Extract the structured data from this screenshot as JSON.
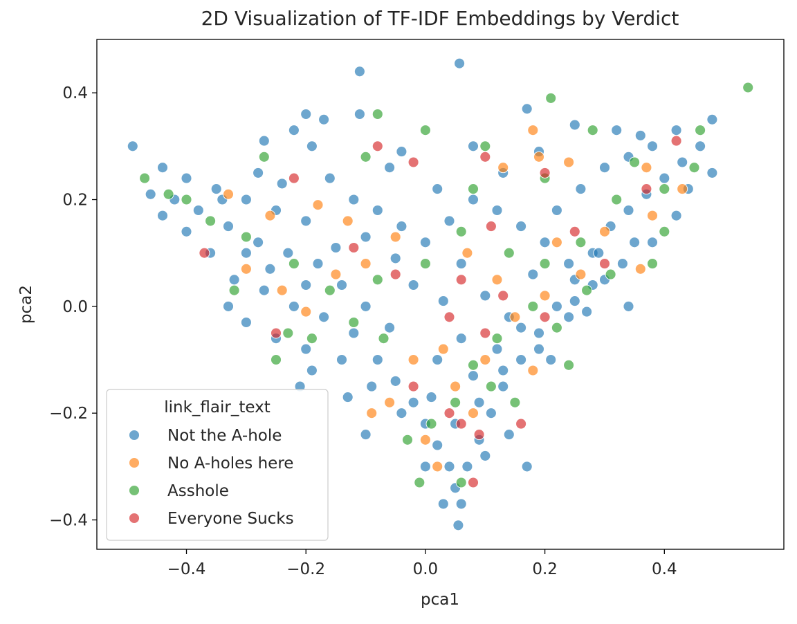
{
  "chart_data": {
    "type": "scatter",
    "title": "2D Visualization of TF-IDF Embeddings by Verdict",
    "xlabel": "pca1",
    "ylabel": "pca2",
    "xlim": [
      -0.55,
      0.6
    ],
    "ylim": [
      -0.455,
      0.5
    ],
    "xticks": [
      -0.4,
      -0.2,
      0.0,
      0.2,
      0.4
    ],
    "xtick_labels": [
      "−0.4",
      "−0.2",
      "0.0",
      "0.2",
      "0.4"
    ],
    "yticks": [
      -0.4,
      -0.2,
      0.0,
      0.2,
      0.4
    ],
    "ytick_labels": [
      "−0.4",
      "−0.2",
      "0.0",
      "0.2",
      "0.4"
    ],
    "grid": false,
    "legend": {
      "title": "link_flair_text",
      "placement": "lower-left"
    },
    "series": [
      {
        "name": "Not the A-hole",
        "color": "#1f77b4",
        "points": [
          [
            -0.49,
            0.3
          ],
          [
            -0.11,
            0.44
          ],
          [
            0.057,
            0.455
          ],
          [
            -0.2,
            0.36
          ],
          [
            -0.22,
            0.33
          ],
          [
            0.42,
            0.33
          ],
          [
            0.48,
            0.35
          ],
          [
            0.17,
            0.37
          ],
          [
            -0.27,
            0.31
          ],
          [
            -0.44,
            0.26
          ],
          [
            -0.4,
            0.24
          ],
          [
            -0.35,
            0.22
          ],
          [
            -0.3,
            0.2
          ],
          [
            -0.25,
            0.18
          ],
          [
            -0.2,
            0.16
          ],
          [
            -0.38,
            0.18
          ],
          [
            -0.33,
            0.15
          ],
          [
            -0.28,
            0.12
          ],
          [
            -0.23,
            0.1
          ],
          [
            -0.18,
            0.08
          ],
          [
            -0.32,
            0.05
          ],
          [
            -0.27,
            0.03
          ],
          [
            -0.22,
            0.0
          ],
          [
            -0.17,
            -0.02
          ],
          [
            -0.12,
            -0.05
          ],
          [
            -0.08,
            -0.1
          ],
          [
            -0.05,
            -0.14
          ],
          [
            -0.02,
            -0.18
          ],
          [
            0.0,
            -0.22
          ],
          [
            0.02,
            -0.26
          ],
          [
            0.04,
            -0.3
          ],
          [
            0.05,
            -0.34
          ],
          [
            0.055,
            -0.41
          ],
          [
            0.07,
            -0.3
          ],
          [
            0.09,
            -0.25
          ],
          [
            0.11,
            -0.2
          ],
          [
            0.13,
            -0.15
          ],
          [
            0.16,
            -0.1
          ],
          [
            0.19,
            -0.05
          ],
          [
            0.22,
            0.0
          ],
          [
            0.25,
            0.05
          ],
          [
            0.28,
            0.1
          ],
          [
            0.31,
            0.15
          ],
          [
            0.34,
            0.18
          ],
          [
            0.37,
            0.21
          ],
          [
            0.4,
            0.24
          ],
          [
            0.43,
            0.27
          ],
          [
            0.46,
            0.3
          ],
          [
            0.35,
            0.12
          ],
          [
            0.3,
            0.05
          ],
          [
            0.27,
            -0.01
          ],
          [
            0.24,
            0.08
          ],
          [
            0.2,
            0.12
          ],
          [
            0.16,
            0.15
          ],
          [
            0.12,
            0.18
          ],
          [
            0.08,
            0.2
          ],
          [
            0.04,
            0.16
          ],
          [
            0.0,
            0.12
          ],
          [
            -0.04,
            0.15
          ],
          [
            -0.08,
            0.18
          ],
          [
            -0.12,
            0.2
          ],
          [
            -0.16,
            0.24
          ],
          [
            -0.06,
            0.26
          ],
          [
            0.02,
            0.22
          ],
          [
            0.06,
            0.08
          ],
          [
            -0.02,
            0.04
          ],
          [
            0.1,
            0.02
          ],
          [
            0.14,
            -0.02
          ],
          [
            0.06,
            -0.06
          ],
          [
            0.02,
            -0.1
          ],
          [
            -0.06,
            -0.04
          ],
          [
            -0.1,
            0.0
          ],
          [
            -0.14,
            0.04
          ],
          [
            0.18,
            0.06
          ],
          [
            0.22,
            0.18
          ],
          [
            0.26,
            0.22
          ],
          [
            0.3,
            0.26
          ],
          [
            0.34,
            0.28
          ],
          [
            0.38,
            0.3
          ],
          [
            -0.36,
            0.1
          ],
          [
            -0.4,
            0.14
          ],
          [
            -0.42,
            0.2
          ],
          [
            -0.3,
            0.1
          ],
          [
            -0.26,
            0.07
          ],
          [
            -0.2,
            0.04
          ],
          [
            -0.15,
            0.11
          ],
          [
            -0.1,
            0.13
          ],
          [
            -0.05,
            0.09
          ],
          [
            0.03,
            0.01
          ],
          [
            0.08,
            -0.13
          ],
          [
            0.12,
            -0.08
          ],
          [
            0.16,
            -0.04
          ],
          [
            0.0,
            -0.3
          ],
          [
            0.03,
            -0.37
          ],
          [
            0.06,
            -0.37
          ],
          [
            0.1,
            -0.28
          ],
          [
            0.14,
            -0.24
          ],
          [
            0.17,
            -0.3
          ],
          [
            -0.1,
            -0.24
          ],
          [
            -0.21,
            -0.15
          ],
          [
            -0.19,
            -0.12
          ],
          [
            -0.13,
            -0.17
          ],
          [
            0.34,
            0.0
          ],
          [
            0.28,
            0.04
          ],
          [
            0.24,
            -0.02
          ],
          [
            -0.11,
            0.36
          ],
          [
            -0.17,
            0.35
          ],
          [
            -0.19,
            0.3
          ],
          [
            -0.04,
            0.29
          ],
          [
            0.08,
            0.3
          ],
          [
            0.13,
            0.25
          ],
          [
            0.19,
            0.29
          ],
          [
            0.25,
            0.34
          ],
          [
            0.32,
            0.33
          ],
          [
            0.36,
            0.32
          ],
          [
            -0.24,
            0.23
          ],
          [
            -0.28,
            0.25
          ],
          [
            -0.34,
            0.2
          ],
          [
            -0.46,
            0.21
          ],
          [
            -0.44,
            0.17
          ],
          [
            0.44,
            0.22
          ],
          [
            0.48,
            0.25
          ],
          [
            0.42,
            0.17
          ],
          [
            0.38,
            0.12
          ],
          [
            0.33,
            0.08
          ],
          [
            -0.33,
            0.0
          ],
          [
            -0.3,
            -0.03
          ],
          [
            -0.25,
            -0.06
          ],
          [
            -0.2,
            -0.08
          ],
          [
            -0.14,
            -0.1
          ],
          [
            -0.09,
            -0.15
          ],
          [
            -0.04,
            -0.2
          ],
          [
            0.01,
            -0.17
          ],
          [
            0.05,
            -0.22
          ],
          [
            0.09,
            -0.18
          ],
          [
            0.13,
            -0.12
          ],
          [
            0.19,
            -0.08
          ],
          [
            0.21,
            -0.1
          ],
          [
            0.25,
            0.01
          ],
          [
            0.29,
            0.1
          ]
        ]
      },
      {
        "name": "No A-holes here",
        "color": "#ff7f0e",
        "points": [
          [
            0.18,
            0.33
          ],
          [
            0.19,
            0.28
          ],
          [
            0.24,
            0.27
          ],
          [
            0.37,
            0.26
          ],
          [
            0.13,
            0.26
          ],
          [
            -0.33,
            0.21
          ],
          [
            -0.26,
            0.17
          ],
          [
            -0.18,
            0.19
          ],
          [
            -0.1,
            0.08
          ],
          [
            -0.05,
            0.13
          ],
          [
            0.07,
            0.1
          ],
          [
            0.12,
            0.05
          ],
          [
            0.15,
            -0.02
          ],
          [
            0.03,
            -0.08
          ],
          [
            -0.02,
            -0.1
          ],
          [
            0.05,
            -0.15
          ],
          [
            0.08,
            -0.2
          ],
          [
            -0.06,
            -0.18
          ],
          [
            -0.09,
            -0.2
          ],
          [
            0.0,
            -0.25
          ],
          [
            0.02,
            -0.3
          ],
          [
            0.1,
            -0.1
          ],
          [
            0.2,
            0.02
          ],
          [
            0.26,
            0.06
          ],
          [
            0.3,
            0.14
          ],
          [
            0.38,
            0.17
          ],
          [
            0.43,
            0.22
          ],
          [
            -0.3,
            0.07
          ],
          [
            -0.24,
            0.03
          ],
          [
            -0.2,
            -0.01
          ],
          [
            -0.15,
            0.06
          ],
          [
            -0.13,
            0.16
          ],
          [
            0.18,
            -0.12
          ],
          [
            0.22,
            0.12
          ],
          [
            0.36,
            0.07
          ]
        ]
      },
      {
        "name": "Asshole",
        "color": "#2ca02c",
        "points": [
          [
            0.54,
            0.41
          ],
          [
            0.21,
            0.39
          ],
          [
            -0.08,
            0.36
          ],
          [
            0.28,
            0.33
          ],
          [
            -0.47,
            0.24
          ],
          [
            -0.27,
            0.28
          ],
          [
            -0.1,
            0.28
          ],
          [
            0.0,
            0.33
          ],
          [
            0.1,
            0.3
          ],
          [
            0.2,
            0.24
          ],
          [
            -0.4,
            0.2
          ],
          [
            -0.36,
            0.16
          ],
          [
            -0.3,
            0.13
          ],
          [
            -0.22,
            0.08
          ],
          [
            -0.16,
            0.03
          ],
          [
            -0.08,
            0.05
          ],
          [
            0.0,
            0.08
          ],
          [
            0.06,
            0.14
          ],
          [
            0.14,
            0.1
          ],
          [
            0.2,
            0.08
          ],
          [
            0.26,
            0.12
          ],
          [
            0.32,
            0.2
          ],
          [
            0.4,
            0.22
          ],
          [
            0.45,
            0.26
          ],
          [
            0.46,
            0.33
          ],
          [
            0.27,
            0.03
          ],
          [
            0.22,
            -0.04
          ],
          [
            0.18,
            0.0
          ],
          [
            0.12,
            -0.06
          ],
          [
            0.08,
            -0.11
          ],
          [
            0.05,
            -0.18
          ],
          [
            0.01,
            -0.22
          ],
          [
            -0.03,
            -0.25
          ],
          [
            0.06,
            -0.33
          ],
          [
            -0.01,
            -0.33
          ],
          [
            -0.07,
            -0.06
          ],
          [
            -0.12,
            -0.03
          ],
          [
            -0.19,
            -0.06
          ],
          [
            -0.25,
            -0.1
          ],
          [
            -0.23,
            -0.05
          ],
          [
            0.24,
            -0.11
          ],
          [
            0.15,
            -0.18
          ],
          [
            0.11,
            -0.15
          ],
          [
            0.31,
            0.06
          ],
          [
            0.38,
            0.08
          ],
          [
            0.35,
            0.27
          ],
          [
            0.4,
            0.14
          ],
          [
            -0.32,
            0.03
          ],
          [
            -0.43,
            0.21
          ],
          [
            0.08,
            0.22
          ]
        ]
      },
      {
        "name": "Everyone Sucks",
        "color": "#d62728",
        "points": [
          [
            0.42,
            0.31
          ],
          [
            0.1,
            0.28
          ],
          [
            -0.02,
            0.27
          ],
          [
            -0.08,
            0.3
          ],
          [
            0.2,
            0.25
          ],
          [
            -0.22,
            0.24
          ],
          [
            -0.37,
            0.1
          ],
          [
            -0.12,
            0.11
          ],
          [
            -0.05,
            0.06
          ],
          [
            0.06,
            0.05
          ],
          [
            0.11,
            0.15
          ],
          [
            0.2,
            -0.02
          ],
          [
            0.13,
            0.02
          ],
          [
            0.04,
            -0.02
          ],
          [
            -0.02,
            -0.15
          ],
          [
            0.04,
            -0.2
          ],
          [
            0.06,
            -0.22
          ],
          [
            0.09,
            -0.24
          ],
          [
            0.08,
            -0.33
          ],
          [
            0.16,
            -0.22
          ],
          [
            -0.25,
            -0.05
          ],
          [
            0.3,
            0.08
          ],
          [
            0.37,
            0.22
          ],
          [
            0.25,
            0.14
          ],
          [
            0.1,
            -0.05
          ]
        ]
      }
    ]
  }
}
